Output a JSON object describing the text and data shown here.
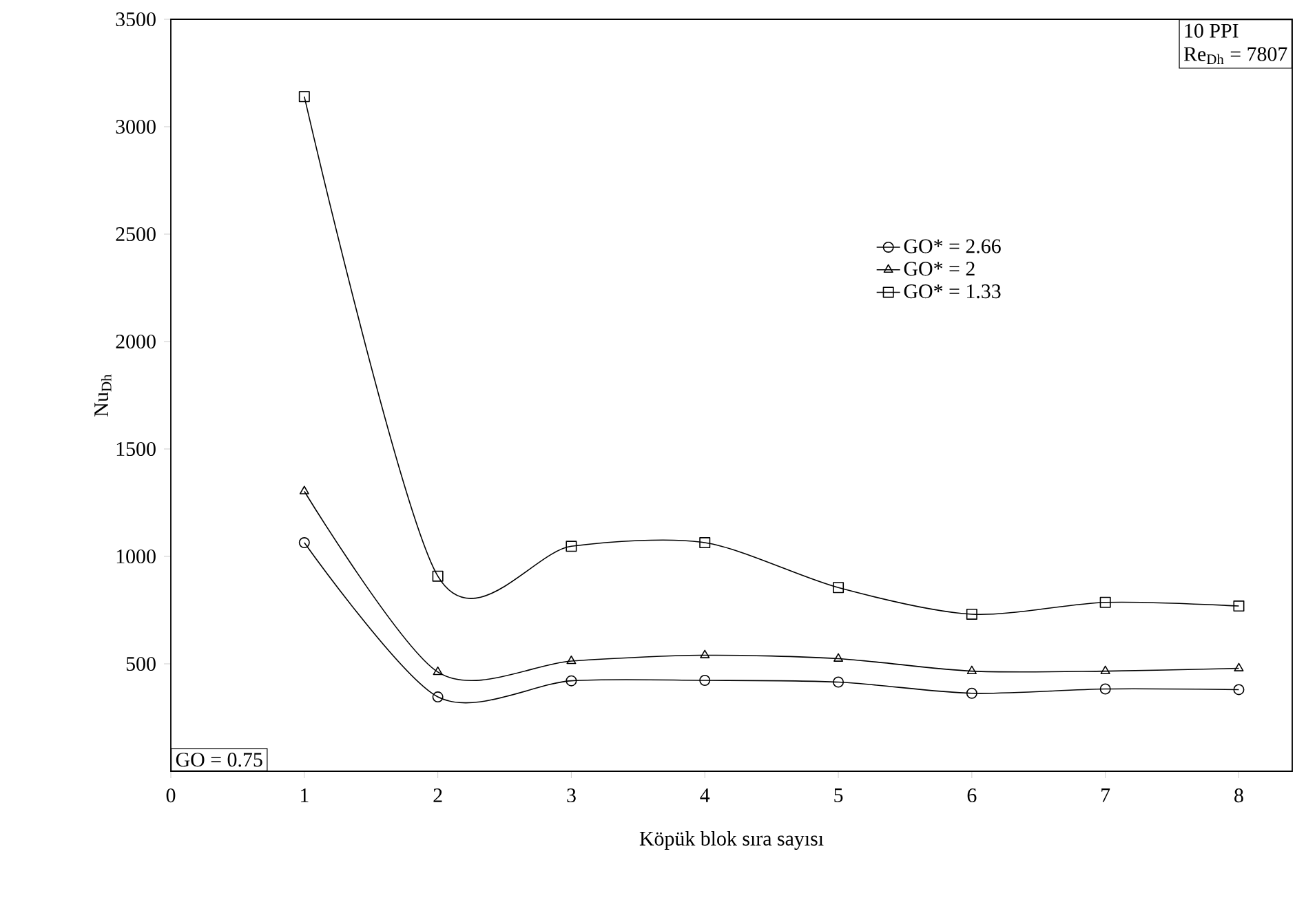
{
  "chart_data": {
    "type": "line",
    "xlabel": "Köpük blok sıra sayısı",
    "ylabel": "Nu$_{Dh}$",
    "x": [
      1,
      2,
      3,
      4,
      5,
      6,
      7,
      8
    ],
    "series": [
      {
        "name": "GO* = 2.66",
        "color": "#000000",
        "marker": "circle",
        "values": [
          1064,
          346,
          421,
          423,
          415,
          363,
          383,
          380
        ]
      },
      {
        "name": "GO* = 2",
        "color": "#000000",
        "marker": "triangle",
        "values": [
          1303,
          462,
          513,
          540,
          524,
          466,
          466,
          479
        ]
      },
      {
        "name": "GO* = 1.33",
        "color": "#000000",
        "marker": "square",
        "values": [
          3140,
          908,
          1047,
          1064,
          855,
          731,
          786,
          769
        ]
      }
    ],
    "xlim": [
      0,
      8.4
    ],
    "xticks": [
      0,
      1,
      2,
      3,
      4,
      5,
      6,
      7,
      8
    ],
    "ylim": [
      0,
      3500
    ],
    "yticks": [
      500,
      1000,
      1500,
      2000,
      2500,
      3000,
      3500
    ],
    "grid": false,
    "legend": "top right",
    "line_style": "solid",
    "annotations": [
      "10 PPI",
      "Re$_{Dh}$ = 7807",
      "GO = 0.75"
    ]
  }
}
